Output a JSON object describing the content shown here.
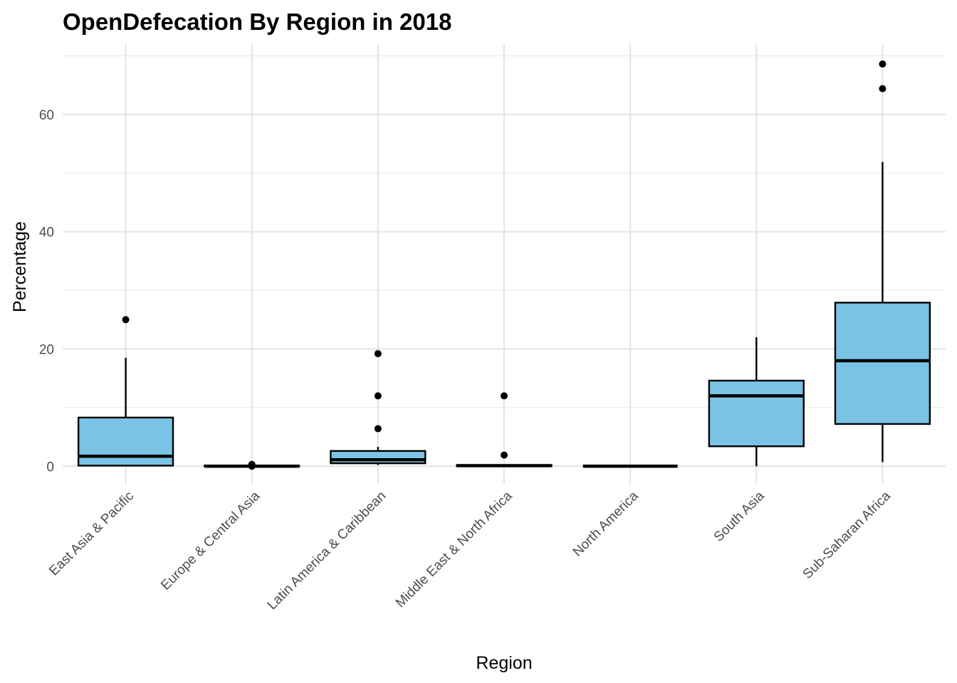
{
  "chart_data": {
    "type": "box",
    "title": "OpenDefecation By Region in 2018",
    "xlabel": "Region",
    "ylabel": "Percentage",
    "ylim": [
      -3,
      72
    ],
    "yticks": [
      0,
      20,
      40,
      60
    ],
    "grid": true,
    "legend": "none",
    "box_fill": "#7bc3e5",
    "box_stroke": "#000000",
    "categories": [
      "East Asia & Pacific",
      "Europe & Central Asia",
      "Latin America & Caribbean",
      "Middle East & North Africa",
      "North America",
      "South Asia",
      "Sub-Saharan Africa"
    ],
    "boxes": [
      {
        "category": "East Asia & Pacific",
        "min": 0,
        "q1": 0.1,
        "median": 1.7,
        "q3": 8.3,
        "max": 18.5,
        "outliers": [
          25
        ]
      },
      {
        "category": "Europe & Central Asia",
        "min": 0,
        "q1": 0,
        "median": 0,
        "q3": 0.1,
        "max": 0.2,
        "outliers": [
          0.3,
          0
        ]
      },
      {
        "category": "Latin America & Caribbean",
        "min": 0.2,
        "q1": 0.5,
        "median": 1.1,
        "q3": 2.6,
        "max": 3.3,
        "outliers": [
          6.4,
          12,
          19.2
        ]
      },
      {
        "category": "Middle East & North Africa",
        "min": 0,
        "q1": 0,
        "median": 0.1,
        "q3": 0.2,
        "max": 0.3,
        "outliers": [
          1.9,
          12
        ]
      },
      {
        "category": "North America",
        "min": 0,
        "q1": 0,
        "median": 0,
        "q3": 0,
        "max": 0,
        "outliers": []
      },
      {
        "category": "South Asia",
        "min": 0,
        "q1": 3.4,
        "median": 12,
        "q3": 14.6,
        "max": 22,
        "outliers": []
      },
      {
        "category": "Sub-Saharan Africa",
        "min": 0.7,
        "q1": 7.2,
        "median": 18,
        "q3": 27.9,
        "max": 51.9,
        "outliers": [
          64.4,
          68.6
        ]
      }
    ]
  }
}
